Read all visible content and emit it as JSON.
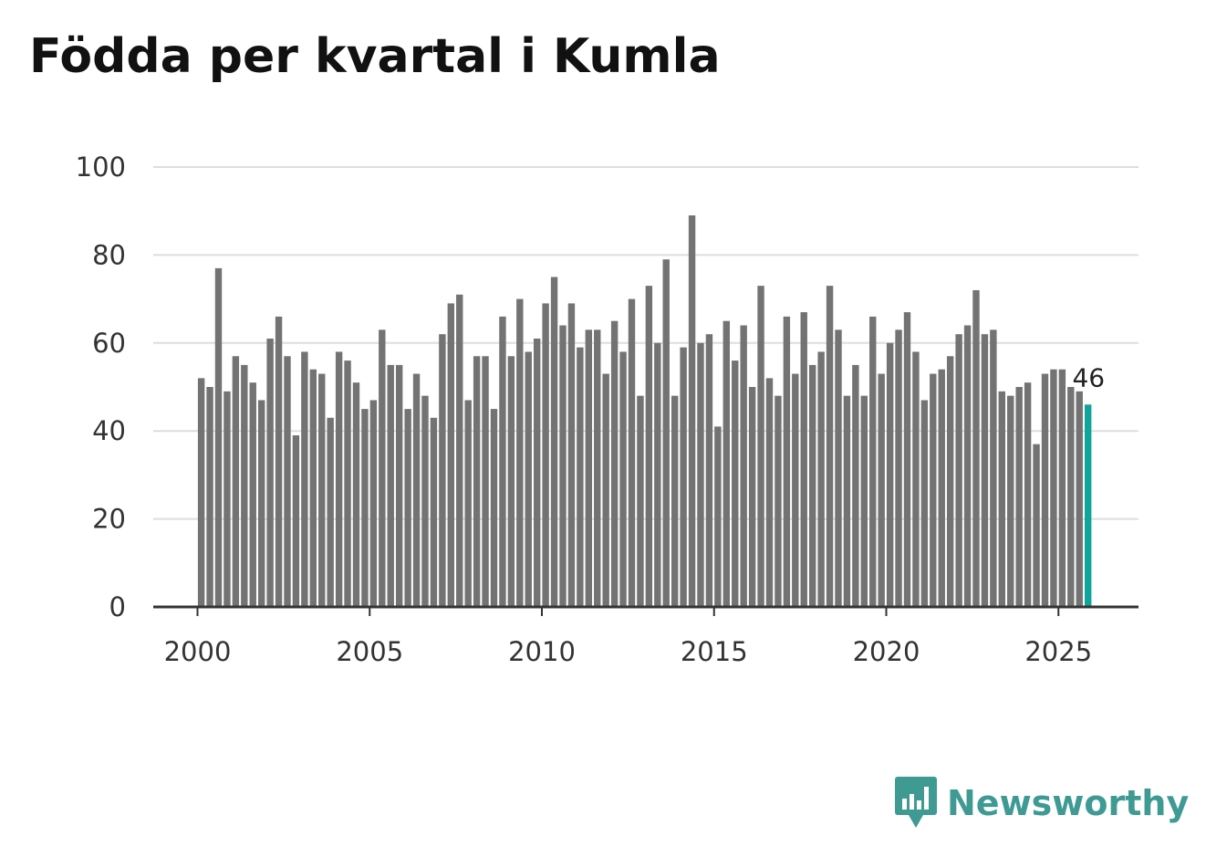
{
  "title": "Födda per kvartal i Kumla",
  "brand": {
    "name": "Newsworthy",
    "color": "#3f9a94",
    "icon": "bar-chart-speech-bubble-icon"
  },
  "colors": {
    "bar": "#737373",
    "highlight": "#0fa59b",
    "grid": "#dddddd",
    "axis": "#333333"
  },
  "chart_data": {
    "type": "bar",
    "title": "Födda per kvartal i Kumla",
    "xlabel": "",
    "ylabel": "",
    "ylim": [
      0,
      100
    ],
    "yticks": [
      0,
      20,
      40,
      60,
      80,
      100
    ],
    "xticks": [
      2000,
      2005,
      2010,
      2015,
      2020,
      2025
    ],
    "x_start": 2000,
    "step": 0.25,
    "grid": true,
    "legend": "none",
    "values": [
      52,
      50,
      77,
      49,
      57,
      55,
      51,
      47,
      61,
      66,
      57,
      39,
      58,
      54,
      53,
      43,
      58,
      56,
      51,
      45,
      47,
      63,
      55,
      55,
      45,
      53,
      48,
      43,
      62,
      69,
      71,
      47,
      57,
      57,
      45,
      66,
      57,
      70,
      58,
      61,
      69,
      75,
      64,
      69,
      59,
      63,
      63,
      53,
      65,
      58,
      70,
      48,
      73,
      60,
      79,
      48,
      59,
      89,
      60,
      62,
      41,
      65,
      56,
      64,
      50,
      73,
      52,
      48,
      66,
      53,
      67,
      55,
      58,
      73,
      63,
      48,
      55,
      48,
      66,
      53,
      60,
      63,
      67,
      58,
      47,
      53,
      54,
      57,
      62,
      64,
      72,
      62,
      63,
      49,
      48,
      50,
      51,
      37,
      53,
      54,
      54,
      50,
      49,
      46
    ],
    "highlight_index": 103,
    "annotation": {
      "index": 103,
      "text": "46"
    }
  }
}
